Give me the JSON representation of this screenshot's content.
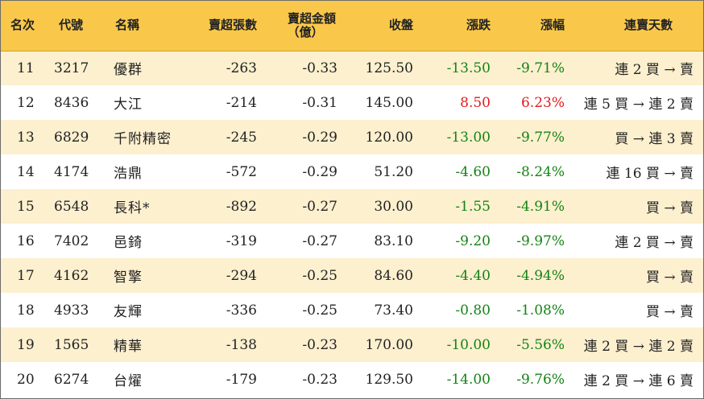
{
  "headers": {
    "rank": "名次",
    "code": "代號",
    "name": "名稱",
    "sell_lots": "賣超張數",
    "sell_amount_line1": "賣超金額",
    "sell_amount_line2": "（億）",
    "close": "收盤",
    "change": "漲跌",
    "pct": "漲幅",
    "days": "連賣天數"
  },
  "colors": {
    "header_bg": "#f9c84a",
    "stripe_bg": "#fdf0cf",
    "down": "#148314",
    "up": "#e21b1b"
  },
  "rows": [
    {
      "rank": "11",
      "code": "3217",
      "name": "優群",
      "sell_lots": "-263",
      "sell_amount": "-0.33",
      "close": "125.50",
      "change": "-13.50",
      "pct": "-9.71%",
      "days": "連 2 買 → 賣",
      "dir": "down"
    },
    {
      "rank": "12",
      "code": "8436",
      "name": "大江",
      "sell_lots": "-214",
      "sell_amount": "-0.31",
      "close": "145.00",
      "change": "8.50",
      "pct": "6.23%",
      "days": "連 5 買 → 連 2 賣",
      "dir": "up"
    },
    {
      "rank": "13",
      "code": "6829",
      "name": "千附精密",
      "sell_lots": "-245",
      "sell_amount": "-0.29",
      "close": "120.00",
      "change": "-13.00",
      "pct": "-9.77%",
      "days": "買 → 連 3 賣",
      "dir": "down"
    },
    {
      "rank": "14",
      "code": "4174",
      "name": "浩鼎",
      "sell_lots": "-572",
      "sell_amount": "-0.29",
      "close": "51.20",
      "change": "-4.60",
      "pct": "-8.24%",
      "days": "連 16 買 → 賣",
      "dir": "down"
    },
    {
      "rank": "15",
      "code": "6548",
      "name": "長科*",
      "sell_lots": "-892",
      "sell_amount": "-0.27",
      "close": "30.00",
      "change": "-1.55",
      "pct": "-4.91%",
      "days": "買 → 賣",
      "dir": "down"
    },
    {
      "rank": "16",
      "code": "7402",
      "name": "邑錡",
      "sell_lots": "-319",
      "sell_amount": "-0.27",
      "close": "83.10",
      "change": "-9.20",
      "pct": "-9.97%",
      "days": "連 2 買 → 賣",
      "dir": "down"
    },
    {
      "rank": "17",
      "code": "4162",
      "name": "智擎",
      "sell_lots": "-294",
      "sell_amount": "-0.25",
      "close": "84.60",
      "change": "-4.40",
      "pct": "-4.94%",
      "days": "買 → 賣",
      "dir": "down"
    },
    {
      "rank": "18",
      "code": "4933",
      "name": "友輝",
      "sell_lots": "-336",
      "sell_amount": "-0.25",
      "close": "73.40",
      "change": "-0.80",
      "pct": "-1.08%",
      "days": "買 → 賣",
      "dir": "down"
    },
    {
      "rank": "19",
      "code": "1565",
      "name": "精華",
      "sell_lots": "-138",
      "sell_amount": "-0.23",
      "close": "170.00",
      "change": "-10.00",
      "pct": "-5.56%",
      "days": "連 2 買 → 連 2 賣",
      "dir": "down"
    },
    {
      "rank": "20",
      "code": "6274",
      "name": "台燿",
      "sell_lots": "-179",
      "sell_amount": "-0.23",
      "close": "129.50",
      "change": "-14.00",
      "pct": "-9.76%",
      "days": "連 2 買 → 連 6 賣",
      "dir": "down"
    }
  ]
}
